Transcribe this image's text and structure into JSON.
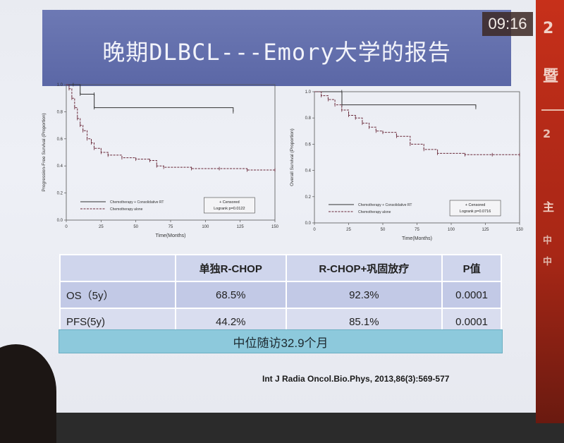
{
  "slide": {
    "title": "晚期DLBCL---Emory大学的报告",
    "clock": "09:16"
  },
  "chart_data": [
    {
      "type": "line",
      "ylabel": "Progression-Free Survival (Proportion)",
      "xlabel": "Time(Months)",
      "x_ticks": [
        "0",
        "25",
        "50",
        "75",
        "100",
        "125",
        "150"
      ],
      "y_ticks": [
        "0.0",
        "0.2",
        "0.4",
        "0.6",
        "0.8",
        "1.0"
      ],
      "xlim": [
        0,
        150
      ],
      "ylim": [
        0,
        1
      ],
      "series": [
        {
          "name": "Chemotherapy + Consolidative RT",
          "style": "solid",
          "x": [
            0,
            5,
            10,
            20,
            20.1,
            120
          ],
          "y": [
            1.0,
            1.0,
            0.93,
            0.93,
            0.83,
            0.8
          ]
        },
        {
          "name": "Chemotherapy alone",
          "style": "dashed",
          "x": [
            0,
            2,
            4,
            6,
            8,
            10,
            12,
            15,
            18,
            20,
            25,
            30,
            40,
            50,
            60,
            65,
            70,
            90,
            110,
            130,
            150
          ],
          "y": [
            1.0,
            0.97,
            0.9,
            0.83,
            0.75,
            0.7,
            0.66,
            0.6,
            0.57,
            0.53,
            0.5,
            0.48,
            0.46,
            0.45,
            0.44,
            0.4,
            0.39,
            0.38,
            0.38,
            0.37,
            0.37
          ]
        }
      ],
      "legend": {
        "censored": "+ Censored",
        "test": "Logrank p=0.0122",
        "position": "bottom"
      }
    },
    {
      "type": "line",
      "ylabel": "Overall Survival (Proportion)",
      "xlabel": "Time(Months)",
      "x_ticks": [
        "0",
        "25",
        "50",
        "75",
        "100",
        "125",
        "150"
      ],
      "y_ticks": [
        "0.0",
        "0.2",
        "0.4",
        "0.6",
        "0.8",
        "1.0"
      ],
      "xlim": [
        0,
        150
      ],
      "ylim": [
        0,
        1
      ],
      "series": [
        {
          "name": "Chemotherapy + Consolidative RT",
          "style": "solid",
          "x": [
            0,
            20,
            20.1,
            118
          ],
          "y": [
            1.0,
            1.0,
            0.9,
            0.88
          ]
        },
        {
          "name": "Chemotherapy alone",
          "style": "dashed",
          "x": [
            0,
            5,
            10,
            15,
            20,
            25,
            30,
            35,
            40,
            45,
            50,
            60,
            70,
            80,
            90,
            110,
            130,
            150
          ],
          "y": [
            1.0,
            0.97,
            0.94,
            0.9,
            0.86,
            0.82,
            0.8,
            0.76,
            0.73,
            0.7,
            0.69,
            0.66,
            0.6,
            0.56,
            0.53,
            0.52,
            0.52,
            0.52
          ]
        }
      ],
      "legend": {
        "censored": "+ Censored",
        "test": "Logrank p=0.0716",
        "position": "bottom"
      }
    }
  ],
  "table": {
    "headers": [
      "",
      "单独R-CHOP",
      "R-CHOP+巩固放疗",
      "P值"
    ],
    "rows": [
      [
        "OS（5y）",
        "68.5%",
        "92.3%",
        "0.0001"
      ],
      [
        "PFS(5y)",
        "44.2%",
        "85.1%",
        "0.0001"
      ]
    ]
  },
  "followup": "中位随访32.9个月",
  "citation": "Int J Radia Oncol.Bio.Phys, 2013,86(3):569-577",
  "right_strip": [
    "2",
    "暨",
    "2",
    "主",
    "中",
    "中"
  ],
  "colors": {
    "title_bar": "#5b67a6",
    "followup_bar": "#8dc9dc",
    "background_strip": "#b52a18"
  }
}
